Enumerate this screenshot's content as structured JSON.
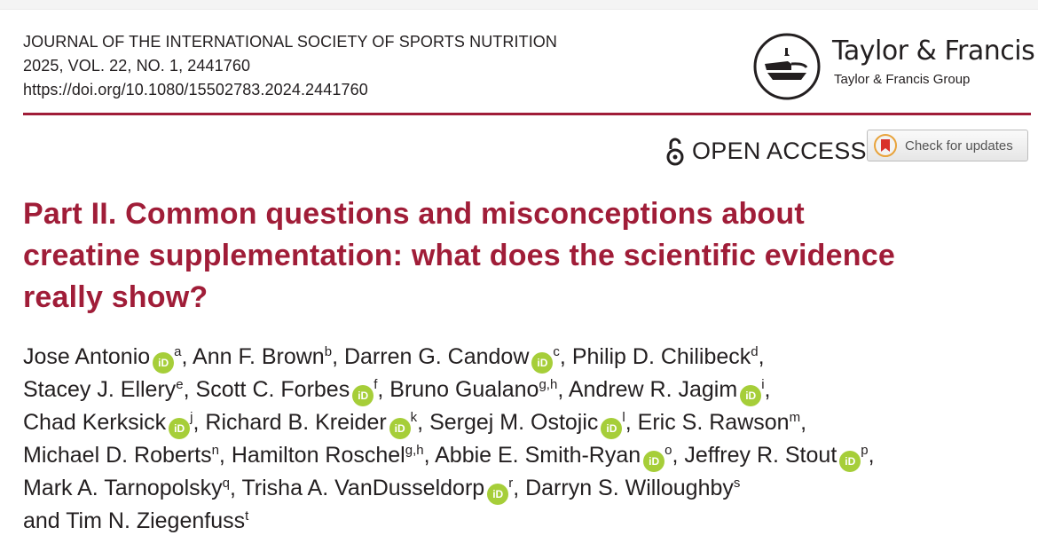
{
  "journal": {
    "name": "JOURNAL OF THE INTERNATIONAL SOCIETY OF SPORTS NUTRITION",
    "volume": "2025, VOL. 22, NO. 1, 2441760",
    "doi": "https://doi.org/10.1080/15502783.2024.2441760"
  },
  "publisher": {
    "name": "Taylor & Francis",
    "group": "Taylor & Francis Group",
    "logo_icon": "lamp-logo-icon"
  },
  "badges": {
    "open_access": "OPEN ACCESS",
    "open_access_icon": "open-lock-icon",
    "check_updates": "Check for updates",
    "check_updates_icon": "bookmark-check-icon"
  },
  "title_lines": [
    "Part II. Common questions and misconceptions about",
    "creatine supplementation: what does the scientific evidence",
    "really show?"
  ],
  "orcid_label": "iD",
  "author_lines": [
    [
      {
        "name": "Jose Antonio",
        "orcid": true,
        "sup": "a",
        "sep": ", "
      },
      {
        "name": "Ann F. Brown",
        "orcid": false,
        "sup": "b",
        "sep": ", "
      },
      {
        "name": "Darren G. Candow",
        "orcid": true,
        "sup": "c",
        "sep": ", "
      },
      {
        "name": "Philip D. Chilibeck",
        "orcid": false,
        "sup": "d",
        "sep": ","
      }
    ],
    [
      {
        "name": "Stacey J. Ellery",
        "orcid": false,
        "sup": "e",
        "sep": ", "
      },
      {
        "name": "Scott C. Forbes",
        "orcid": true,
        "sup": "f",
        "sep": ", "
      },
      {
        "name": "Bruno Gualano",
        "orcid": false,
        "sup": "g,h",
        "sep": ", "
      },
      {
        "name": "Andrew R. Jagim",
        "orcid": true,
        "sup": "i",
        "sep": ","
      }
    ],
    [
      {
        "name": "Chad Kerksick",
        "orcid": true,
        "sup": "j",
        "sep": ", "
      },
      {
        "name": "Richard B. Kreider",
        "orcid": true,
        "sup": "k",
        "sep": ", "
      },
      {
        "name": "Sergej M. Ostojic",
        "orcid": true,
        "sup": "l",
        "sep": ", "
      },
      {
        "name": "Eric S. Rawson",
        "orcid": false,
        "sup": "m",
        "sep": ","
      }
    ],
    [
      {
        "name": "Michael D. Roberts",
        "orcid": false,
        "sup": "n",
        "sep": ", "
      },
      {
        "name": "Hamilton Roschel",
        "orcid": false,
        "sup": "g,h",
        "sep": ", "
      },
      {
        "name": "Abbie E. Smith-Ryan",
        "orcid": true,
        "sup": "o",
        "sep": ", "
      },
      {
        "name": "Jeffrey R. Stout",
        "orcid": true,
        "sup": "p",
        "sep": ","
      }
    ],
    [
      {
        "name": "Mark A. Tarnopolsky",
        "orcid": false,
        "sup": "q",
        "sep": ", "
      },
      {
        "name": "Trisha A. VanDusseldorp",
        "orcid": true,
        "sup": "r",
        "sep": ", "
      },
      {
        "name": "Darryn S. Willoughby",
        "orcid": false,
        "sup": "s",
        "sep": ""
      }
    ],
    [
      {
        "prefix": "and ",
        "name": "Tim N. Ziegenfuss",
        "orcid": false,
        "sup": "t",
        "sep": ""
      }
    ]
  ],
  "colors": {
    "accent": "#a01d38",
    "orcid": "#a6ce39",
    "text": "#231f20"
  }
}
